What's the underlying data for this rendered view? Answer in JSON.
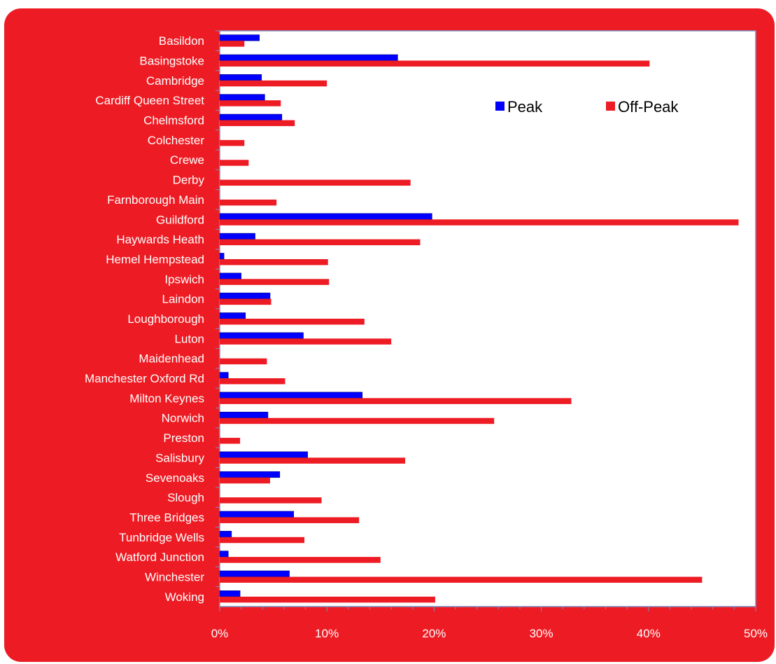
{
  "colors": {
    "background": "#ed1c24",
    "plot_area": "#ffffff",
    "plot_border": "#7f8fbf",
    "peak": "#0000ff",
    "off_peak": "#ed1c24",
    "text_on_frame": "#ffffff"
  },
  "chart_data": {
    "type": "bar",
    "orientation": "horizontal",
    "title": "",
    "xlabel": "",
    "ylabel": "",
    "xlim": [
      0,
      50
    ],
    "value_format": "percent",
    "ticks": [
      "0%",
      "10%",
      "20%",
      "30%",
      "40%",
      "50%"
    ],
    "tick_values": [
      0,
      10,
      20,
      30,
      40,
      50
    ],
    "legend": {
      "position": "top-right",
      "entries": [
        "Peak",
        "Off-Peak"
      ]
    },
    "grid": false,
    "categories": [
      "Basildon",
      "Basingstoke",
      "Cambridge",
      "Cardiff Queen Street",
      "Chelmsford",
      "Colchester",
      "Crewe",
      "Derby",
      "Farnborough Main",
      "Guildford",
      "Haywards Heath",
      "Hemel Hempstead",
      "Ipswich",
      "Laindon",
      "Loughborough",
      "Luton",
      "Maidenhead",
      "Manchester Oxford Rd",
      "Milton Keynes",
      "Norwich",
      "Preston",
      "Salisbury",
      "Sevenoaks",
      "Slough",
      "Three Bridges",
      "Tunbridge Wells",
      "Watford Junction",
      "Winchester",
      "Woking"
    ],
    "series": [
      {
        "name": "Peak",
        "values": [
          3.7,
          16.6,
          3.9,
          4.2,
          5.8,
          0,
          0,
          0,
          0,
          19.8,
          3.3,
          0.4,
          2.0,
          4.7,
          2.4,
          7.8,
          0,
          0.8,
          13.3,
          4.5,
          0,
          8.2,
          5.6,
          0,
          6.9,
          1.1,
          0.8,
          6.5,
          1.9
        ]
      },
      {
        "name": "Off-Peak",
        "values": [
          2.3,
          40.1,
          10.0,
          5.7,
          7.0,
          2.3,
          2.7,
          17.8,
          5.3,
          48.4,
          18.7,
          10.1,
          10.2,
          4.8,
          13.5,
          16.0,
          4.4,
          6.1,
          32.8,
          25.6,
          1.9,
          17.3,
          4.7,
          9.5,
          13.0,
          7.9,
          15.0,
          45.0,
          20.1
        ]
      }
    ]
  }
}
